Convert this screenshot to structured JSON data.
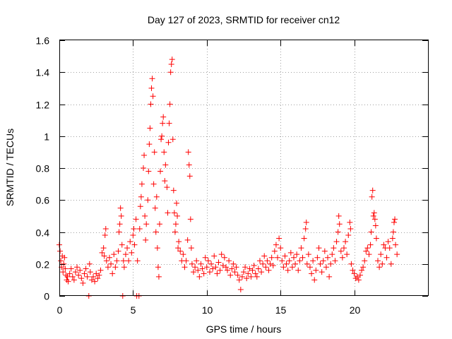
{
  "chart_data": {
    "type": "scatter",
    "title": "Day 127 of 2023, SRMTID for receiver cn12",
    "xlabel": "GPS time / hours",
    "ylabel": "SRMTID / TECUs",
    "xlim": [
      0,
      25
    ],
    "ylim": [
      0,
      1.6
    ],
    "xticks": [
      "0",
      "5",
      "10",
      "15",
      "20"
    ],
    "yticks": [
      "0",
      "0.2",
      "0.4",
      "0.6",
      "0.8",
      "1",
      "1.2",
      "1.4",
      "1.6"
    ],
    "grid": true,
    "marker": "+",
    "series": [
      {
        "name": "cn12",
        "color": "#ff0000",
        "points": [
          [
            0.0,
            0.32
          ],
          [
            0.05,
            0.28
          ],
          [
            0.1,
            0.22
          ],
          [
            0.15,
            0.18
          ],
          [
            0.2,
            0.25
          ],
          [
            0.25,
            0.15
          ],
          [
            0.3,
            0.2
          ],
          [
            0.35,
            0.24
          ],
          [
            0.4,
            0.17
          ],
          [
            0.45,
            0.13
          ],
          [
            0.5,
            0.1
          ],
          [
            0.55,
            0.12
          ],
          [
            0.6,
            0.09
          ],
          [
            0.7,
            0.14
          ],
          [
            0.8,
            0.17
          ],
          [
            0.9,
            0.12
          ],
          [
            1.0,
            0.1
          ],
          [
            1.1,
            0.15
          ],
          [
            1.2,
            0.18
          ],
          [
            1.3,
            0.13
          ],
          [
            1.4,
            0.16
          ],
          [
            1.5,
            0.11
          ],
          [
            1.6,
            0.08
          ],
          [
            1.7,
            0.14
          ],
          [
            1.8,
            0.17
          ],
          [
            1.9,
            0.12
          ],
          [
            2.0,
            0.0
          ],
          [
            2.05,
            0.2
          ],
          [
            2.1,
            0.15
          ],
          [
            2.2,
            0.1
          ],
          [
            2.3,
            0.12
          ],
          [
            2.4,
            0.09
          ],
          [
            2.5,
            0.14
          ],
          [
            2.6,
            0.11
          ],
          [
            2.7,
            0.13
          ],
          [
            2.8,
            0.16
          ],
          [
            2.9,
            0.27
          ],
          [
            3.0,
            0.3
          ],
          [
            3.05,
            0.25
          ],
          [
            3.1,
            0.38
          ],
          [
            3.15,
            0.42
          ],
          [
            3.2,
            0.22
          ],
          [
            3.3,
            0.18
          ],
          [
            3.4,
            0.24
          ],
          [
            3.5,
            0.2
          ],
          [
            3.6,
            0.14
          ],
          [
            3.7,
            0.26
          ],
          [
            3.8,
            0.18
          ],
          [
            3.9,
            0.22
          ],
          [
            4.0,
            0.28
          ],
          [
            4.05,
            0.4
          ],
          [
            4.1,
            0.45
          ],
          [
            4.15,
            0.55
          ],
          [
            4.2,
            0.5
          ],
          [
            4.25,
            0.32
          ],
          [
            4.3,
            0.0
          ],
          [
            4.35,
            0.22
          ],
          [
            4.4,
            0.18
          ],
          [
            4.5,
            0.26
          ],
          [
            4.6,
            0.3
          ],
          [
            4.7,
            0.22
          ],
          [
            4.8,
            0.34
          ],
          [
            4.9,
            0.27
          ],
          [
            5.0,
            0.38
          ],
          [
            5.05,
            0.42
          ],
          [
            5.1,
            0.32
          ],
          [
            5.2,
            0.48
          ],
          [
            5.25,
            0.0
          ],
          [
            5.3,
            0.22
          ],
          [
            5.4,
            0.0
          ],
          [
            5.45,
            0.42
          ],
          [
            5.5,
            0.56
          ],
          [
            5.55,
            0.62
          ],
          [
            5.6,
            0.7
          ],
          [
            5.7,
            0.8
          ],
          [
            5.75,
            0.88
          ],
          [
            5.8,
            0.5
          ],
          [
            5.85,
            0.35
          ],
          [
            5.9,
            0.45
          ],
          [
            6.0,
            0.6
          ],
          [
            6.05,
            0.78
          ],
          [
            6.1,
            0.95
          ],
          [
            6.15,
            1.05
          ],
          [
            6.2,
            1.2
          ],
          [
            6.25,
            1.3
          ],
          [
            6.3,
            1.36
          ],
          [
            6.35,
            1.25
          ],
          [
            6.4,
            0.7
          ],
          [
            6.45,
            0.9
          ],
          [
            6.5,
            0.55
          ],
          [
            6.55,
            0.4
          ],
          [
            6.6,
            0.62
          ],
          [
            6.65,
            0.3
          ],
          [
            6.7,
            0.18
          ],
          [
            6.75,
            0.12
          ],
          [
            6.8,
            0.45
          ],
          [
            6.85,
            0.78
          ],
          [
            6.9,
            0.98
          ],
          [
            6.95,
            1.0
          ],
          [
            7.0,
            1.08
          ],
          [
            7.05,
            1.12
          ],
          [
            7.1,
            0.9
          ],
          [
            7.15,
            0.72
          ],
          [
            7.2,
            0.82
          ],
          [
            7.3,
            0.68
          ],
          [
            7.35,
            0.52
          ],
          [
            7.4,
            0.96
          ],
          [
            7.45,
            1.08
          ],
          [
            7.5,
            1.2
          ],
          [
            7.55,
            1.4
          ],
          [
            7.6,
            1.45
          ],
          [
            7.65,
            1.48
          ],
          [
            7.7,
            0.98
          ],
          [
            7.75,
            0.66
          ],
          [
            7.8,
            0.52
          ],
          [
            7.85,
            0.4
          ],
          [
            7.9,
            0.45
          ],
          [
            7.95,
            0.58
          ],
          [
            8.0,
            0.5
          ],
          [
            8.05,
            0.3
          ],
          [
            8.1,
            0.34
          ],
          [
            8.2,
            0.28
          ],
          [
            8.3,
            0.22
          ],
          [
            8.4,
            0.26
          ],
          [
            8.5,
            0.18
          ],
          [
            8.6,
            0.22
          ],
          [
            8.7,
            0.35
          ],
          [
            8.75,
            0.9
          ],
          [
            8.8,
            0.82
          ],
          [
            8.85,
            0.75
          ],
          [
            8.9,
            0.48
          ],
          [
            8.95,
            0.3
          ],
          [
            9.0,
            0.2
          ],
          [
            9.1,
            0.15
          ],
          [
            9.2,
            0.18
          ],
          [
            9.3,
            0.22
          ],
          [
            9.4,
            0.16
          ],
          [
            9.5,
            0.12
          ],
          [
            9.6,
            0.2
          ],
          [
            9.7,
            0.17
          ],
          [
            9.8,
            0.14
          ],
          [
            9.9,
            0.24
          ],
          [
            10.0,
            0.18
          ],
          [
            10.1,
            0.22
          ],
          [
            10.2,
            0.15
          ],
          [
            10.3,
            0.2
          ],
          [
            10.4,
            0.17
          ],
          [
            10.5,
            0.25
          ],
          [
            10.6,
            0.18
          ],
          [
            10.7,
            0.14
          ],
          [
            10.8,
            0.21
          ],
          [
            10.9,
            0.16
          ],
          [
            11.0,
            0.26
          ],
          [
            11.1,
            0.19
          ],
          [
            11.2,
            0.24
          ],
          [
            11.3,
            0.18
          ],
          [
            11.4,
            0.16
          ],
          [
            11.5,
            0.22
          ],
          [
            11.6,
            0.13
          ],
          [
            11.7,
            0.17
          ],
          [
            11.8,
            0.2
          ],
          [
            11.9,
            0.15
          ],
          [
            12.0,
            0.18
          ],
          [
            12.1,
            0.13
          ],
          [
            12.2,
            0.1
          ],
          [
            12.3,
            0.04
          ],
          [
            12.4,
            0.12
          ],
          [
            12.5,
            0.15
          ],
          [
            12.6,
            0.18
          ],
          [
            12.7,
            0.11
          ],
          [
            12.8,
            0.14
          ],
          [
            12.9,
            0.17
          ],
          [
            13.0,
            0.12
          ],
          [
            13.1,
            0.16
          ],
          [
            13.2,
            0.19
          ],
          [
            13.3,
            0.14
          ],
          [
            13.4,
            0.12
          ],
          [
            13.5,
            0.17
          ],
          [
            13.6,
            0.22
          ],
          [
            13.7,
            0.15
          ],
          [
            13.8,
            0.2
          ],
          [
            13.9,
            0.25
          ],
          [
            14.0,
            0.18
          ],
          [
            14.1,
            0.22
          ],
          [
            14.2,
            0.16
          ],
          [
            14.3,
            0.2
          ],
          [
            14.4,
            0.24
          ],
          [
            14.5,
            0.19
          ],
          [
            14.6,
            0.28
          ],
          [
            14.7,
            0.32
          ],
          [
            14.8,
            0.24
          ],
          [
            14.9,
            0.36
          ],
          [
            15.0,
            0.3
          ],
          [
            15.1,
            0.22
          ],
          [
            15.2,
            0.18
          ],
          [
            15.3,
            0.25
          ],
          [
            15.4,
            0.2
          ],
          [
            15.5,
            0.16
          ],
          [
            15.6,
            0.22
          ],
          [
            15.7,
            0.27
          ],
          [
            15.8,
            0.18
          ],
          [
            15.9,
            0.24
          ],
          [
            16.0,
            0.2
          ],
          [
            16.1,
            0.26
          ],
          [
            16.2,
            0.16
          ],
          [
            16.3,
            0.22
          ],
          [
            16.4,
            0.3
          ],
          [
            16.5,
            0.24
          ],
          [
            16.6,
            0.36
          ],
          [
            16.7,
            0.42
          ],
          [
            16.75,
            0.46
          ],
          [
            16.8,
            0.2
          ],
          [
            16.9,
            0.26
          ],
          [
            17.0,
            0.18
          ],
          [
            17.1,
            0.14
          ],
          [
            17.2,
            0.22
          ],
          [
            17.3,
            0.1
          ],
          [
            17.4,
            0.16
          ],
          [
            17.5,
            0.24
          ],
          [
            17.6,
            0.3
          ],
          [
            17.7,
            0.2
          ],
          [
            17.8,
            0.15
          ],
          [
            17.9,
            0.22
          ],
          [
            18.0,
            0.28
          ],
          [
            18.1,
            0.18
          ],
          [
            18.2,
            0.24
          ],
          [
            18.3,
            0.12
          ],
          [
            18.4,
            0.2
          ],
          [
            18.5,
            0.26
          ],
          [
            18.6,
            0.3
          ],
          [
            18.7,
            0.22
          ],
          [
            18.8,
            0.34
          ],
          [
            18.9,
            0.4
          ],
          [
            18.95,
            0.5
          ],
          [
            19.0,
            0.45
          ],
          [
            19.1,
            0.28
          ],
          [
            19.2,
            0.24
          ],
          [
            19.3,
            0.3
          ],
          [
            19.4,
            0.34
          ],
          [
            19.5,
            0.26
          ],
          [
            19.6,
            0.38
          ],
          [
            19.7,
            0.46
          ],
          [
            19.75,
            0.42
          ],
          [
            19.8,
            0.2
          ],
          [
            19.9,
            0.16
          ],
          [
            20.0,
            0.14
          ],
          [
            20.1,
            0.11
          ],
          [
            20.2,
            0.12
          ],
          [
            20.3,
            0.1
          ],
          [
            20.4,
            0.13
          ],
          [
            20.5,
            0.16
          ],
          [
            20.6,
            0.18
          ],
          [
            20.7,
            0.22
          ],
          [
            20.8,
            0.28
          ],
          [
            20.9,
            0.3
          ],
          [
            21.0,
            0.26
          ],
          [
            21.1,
            0.32
          ],
          [
            21.15,
            0.4
          ],
          [
            21.2,
            0.62
          ],
          [
            21.25,
            0.66
          ],
          [
            21.3,
            0.5
          ],
          [
            21.35,
            0.52
          ],
          [
            21.4,
            0.48
          ],
          [
            21.45,
            0.44
          ],
          [
            21.5,
            0.36
          ],
          [
            21.6,
            0.22
          ],
          [
            21.7,
            0.18
          ],
          [
            21.8,
            0.26
          ],
          [
            21.9,
            0.2
          ],
          [
            22.0,
            0.32
          ],
          [
            22.1,
            0.3
          ],
          [
            22.2,
            0.24
          ],
          [
            22.3,
            0.34
          ],
          [
            22.4,
            0.3
          ],
          [
            22.5,
            0.2
          ],
          [
            22.6,
            0.36
          ],
          [
            22.65,
            0.4
          ],
          [
            22.7,
            0.46
          ],
          [
            22.75,
            0.48
          ],
          [
            22.8,
            0.32
          ],
          [
            22.9,
            0.26
          ]
        ]
      }
    ]
  }
}
